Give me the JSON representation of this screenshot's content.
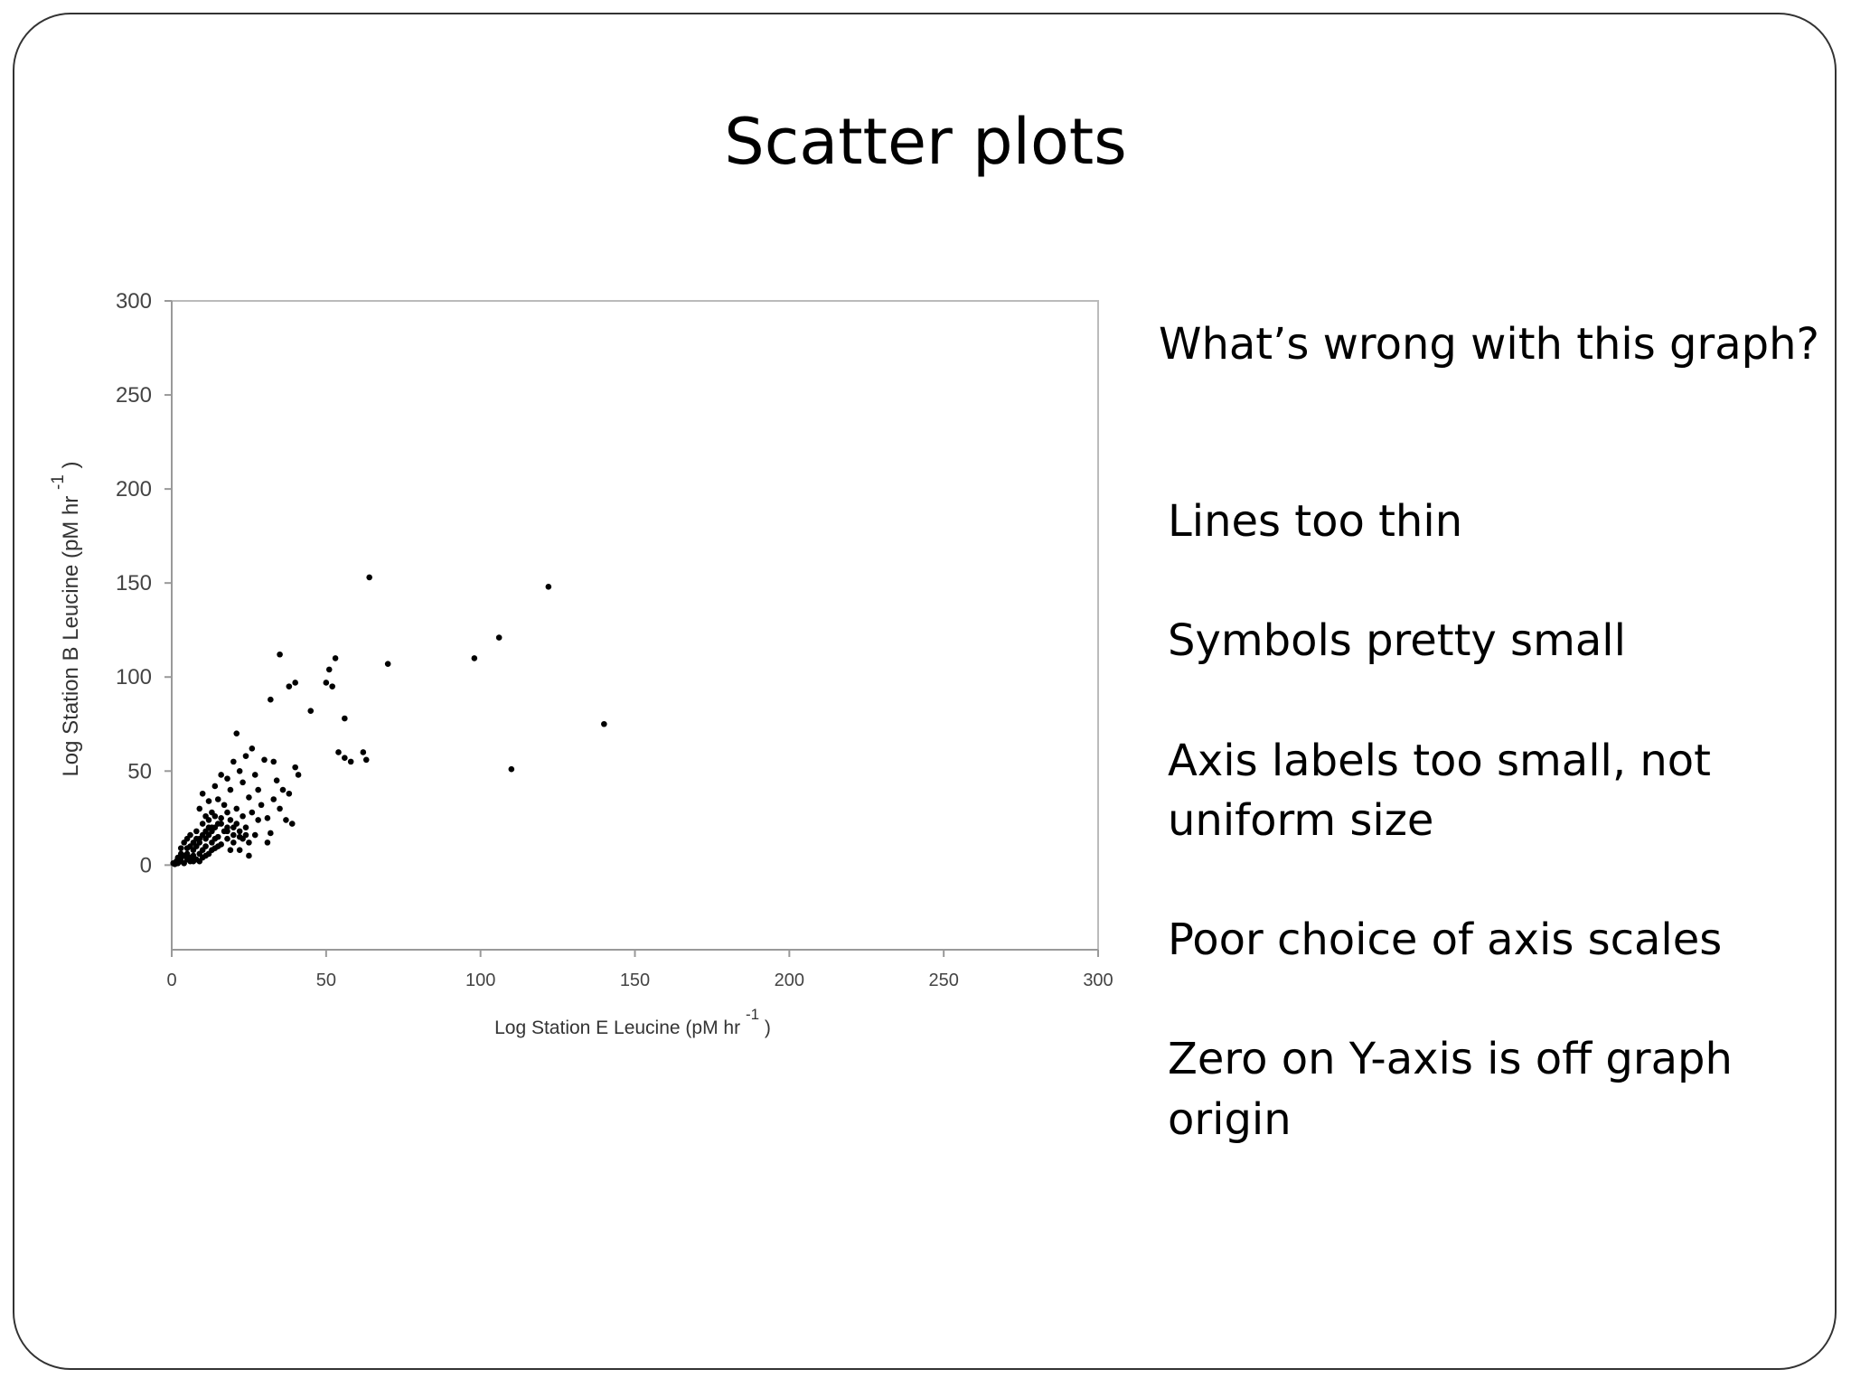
{
  "slide": {
    "title": "Scatter plots",
    "question": "What’s wrong with this graph?",
    "points": [
      "Lines too thin",
      "Symbols pretty small",
      "Axis labels too small, not uniform size",
      "Poor choice of axis scales",
      "Zero on Y-axis is off graph origin"
    ]
  },
  "chart_data": {
    "type": "scatter",
    "title": "",
    "xlabel": "Log Station E Leucine (pM hr",
    "ylabel": "Log Station B Leucine (pM hr",
    "label_superscript": "-1",
    "label_close": ")",
    "xlim": [
      0,
      300
    ],
    "ylim": [
      -45,
      300
    ],
    "xticks": [
      0,
      50,
      100,
      150,
      200,
      250,
      300
    ],
    "yticks": [
      0,
      50,
      100,
      150,
      200,
      250,
      300
    ],
    "grid": false,
    "legend": "none",
    "point_color": "#000000",
    "axis_color": "#999999",
    "points": [
      [
        0.5,
        1
      ],
      [
        1,
        0.5
      ],
      [
        1.5,
        2
      ],
      [
        2,
        1
      ],
      [
        2,
        3
      ],
      [
        3,
        2
      ],
      [
        3,
        4
      ],
      [
        4,
        1
      ],
      [
        4,
        5
      ],
      [
        5,
        3
      ],
      [
        5,
        6
      ],
      [
        6,
        4
      ],
      [
        6,
        2
      ],
      [
        7,
        8
      ],
      [
        7,
        5
      ],
      [
        8,
        3
      ],
      [
        8,
        10
      ],
      [
        9,
        6
      ],
      [
        9,
        12
      ],
      [
        10,
        8
      ],
      [
        10,
        4
      ],
      [
        11,
        14
      ],
      [
        11,
        10
      ],
      [
        12,
        6
      ],
      [
        12,
        16
      ],
      [
        13,
        12
      ],
      [
        13,
        18
      ],
      [
        14,
        9
      ],
      [
        14,
        20
      ],
      [
        15,
        15
      ],
      [
        15,
        22
      ],
      [
        16,
        11
      ],
      [
        16,
        25
      ],
      [
        17,
        18
      ],
      [
        18,
        14
      ],
      [
        18,
        20
      ],
      [
        19,
        24
      ],
      [
        20,
        16
      ],
      [
        20,
        12
      ],
      [
        21,
        22
      ],
      [
        22,
        18
      ],
      [
        23,
        14
      ],
      [
        24,
        20
      ],
      [
        24,
        16
      ],
      [
        25,
        12
      ],
      [
        3,
        9
      ],
      [
        4,
        12
      ],
      [
        5,
        14
      ],
      [
        6,
        16
      ],
      [
        7,
        12
      ],
      [
        8,
        18
      ],
      [
        9,
        14
      ],
      [
        10,
        22
      ],
      [
        11,
        18
      ],
      [
        12,
        24
      ],
      [
        13,
        20
      ],
      [
        14,
        26
      ],
      [
        6,
        10
      ],
      [
        8,
        14
      ],
      [
        10,
        16
      ],
      [
        12,
        20
      ],
      [
        14,
        14
      ],
      [
        16,
        22
      ],
      [
        18,
        18
      ],
      [
        20,
        20
      ],
      [
        22,
        15
      ],
      [
        9,
        30
      ],
      [
        10,
        38
      ],
      [
        12,
        34
      ],
      [
        14,
        42
      ],
      [
        15,
        35
      ],
      [
        16,
        48
      ],
      [
        18,
        46
      ],
      [
        19,
        40
      ],
      [
        20,
        55
      ],
      [
        21,
        70
      ],
      [
        22,
        50
      ],
      [
        23,
        44
      ],
      [
        24,
        58
      ],
      [
        25,
        36
      ],
      [
        26,
        62
      ],
      [
        27,
        48
      ],
      [
        28,
        40
      ],
      [
        29,
        32
      ],
      [
        30,
        56
      ],
      [
        31,
        25
      ],
      [
        32,
        17
      ],
      [
        33,
        55
      ],
      [
        34,
        45
      ],
      [
        35,
        30
      ],
      [
        36,
        40
      ],
      [
        37,
        24
      ],
      [
        38,
        38
      ],
      [
        39,
        22
      ],
      [
        40,
        52
      ],
      [
        41,
        48
      ],
      [
        32,
        88
      ],
      [
        35,
        112
      ],
      [
        38,
        95
      ],
      [
        40,
        97
      ],
      [
        45,
        82
      ],
      [
        50,
        97
      ],
      [
        51,
        104
      ],
      [
        52,
        95
      ],
      [
        53,
        110
      ],
      [
        54,
        60
      ],
      [
        56,
        78
      ],
      [
        56,
        57
      ],
      [
        58,
        55
      ],
      [
        62,
        60
      ],
      [
        63,
        56
      ],
      [
        64,
        153
      ],
      [
        70,
        107
      ],
      [
        98,
        110
      ],
      [
        106,
        121
      ],
      [
        110,
        51
      ],
      [
        122,
        148
      ],
      [
        140,
        75
      ],
      [
        25,
        5
      ],
      [
        31,
        12
      ],
      [
        33,
        35
      ],
      [
        28,
        24
      ],
      [
        26,
        28
      ],
      [
        22,
        8
      ],
      [
        18,
        28
      ],
      [
        17,
        32
      ],
      [
        13,
        28
      ],
      [
        11,
        26
      ],
      [
        15,
        10
      ],
      [
        7,
        2
      ],
      [
        5,
        9
      ],
      [
        3,
        6
      ],
      [
        2,
        4
      ],
      [
        9,
        2
      ],
      [
        11,
        5
      ],
      [
        13,
        8
      ],
      [
        19,
        8
      ],
      [
        21,
        30
      ],
      [
        23,
        26
      ],
      [
        27,
        16
      ]
    ]
  }
}
